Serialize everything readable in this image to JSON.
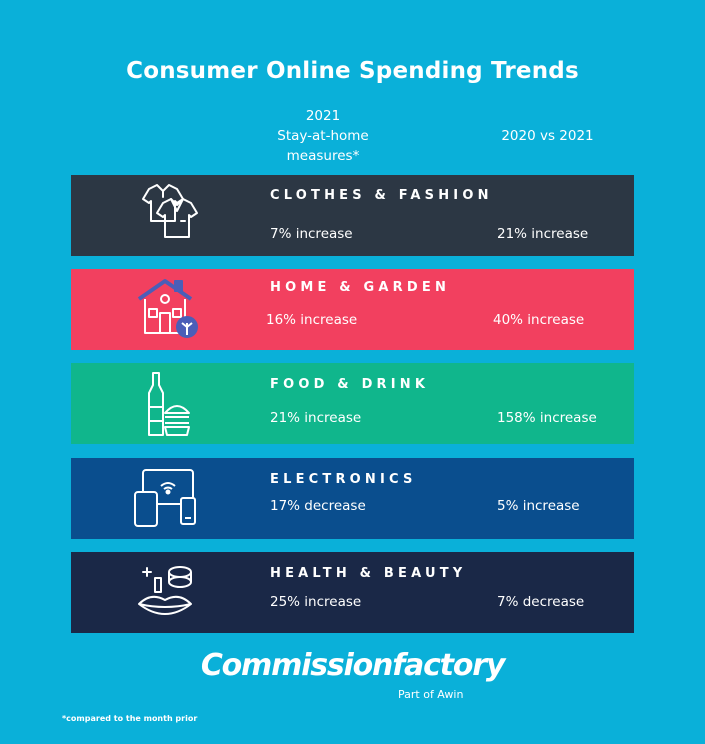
{
  "title": "Consumer Online Spending Trends",
  "columns": {
    "col1": [
      "2021",
      "Stay-at-home",
      "measures*"
    ],
    "col2": "2020 vs 2021"
  },
  "chart_data": {
    "type": "table",
    "title": "Consumer Online Spending Trends",
    "columns": [
      "2021 Stay-at-home measures*",
      "2020 vs 2021"
    ],
    "rows": [
      {
        "category": "CLOTHES & FASHION",
        "stay_at_home": "7% increase",
        "yoy": "21% increase",
        "color": "#2c3744",
        "icon": "clothes-icon"
      },
      {
        "category": "HOME & GARDEN",
        "stay_at_home": "16% increase",
        "yoy": "40% increase",
        "color": "#f2405f",
        "icon": "house-icon"
      },
      {
        "category": "FOOD & DRINK",
        "stay_at_home": "21% increase",
        "yoy": "158% increase",
        "color": "#10b68c",
        "icon": "food-drink-icon"
      },
      {
        "category": "ELECTRONICS",
        "stay_at_home": "17% decrease",
        "yoy": "5% increase",
        "color": "#0a4e8e",
        "icon": "devices-icon"
      },
      {
        "category": "HEALTH & BEAUTY",
        "stay_at_home": "25% increase",
        "yoy": "7% decrease",
        "color": "#1a2847",
        "icon": "beauty-icon"
      }
    ]
  },
  "logo": {
    "name": "Commissionfactory",
    "sub": "Part of Awin"
  },
  "footnote": "*compared to the month prior"
}
